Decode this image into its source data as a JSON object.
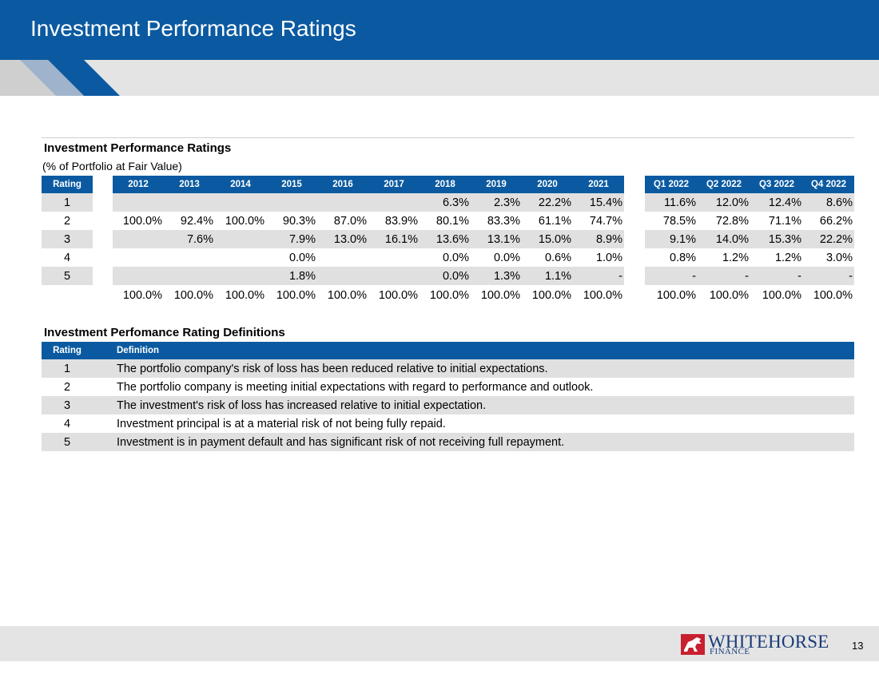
{
  "header": {
    "title": "Investment Performance Ratings"
  },
  "ratings_table": {
    "title": "Investment Performance Ratings",
    "subtitle": "(% of Portfolio at Fair Value)",
    "rating_header": "Rating",
    "year_headers": [
      "2012",
      "2013",
      "2014",
      "2015",
      "2016",
      "2017",
      "2018",
      "2019",
      "2020",
      "2021"
    ],
    "quarter_headers": [
      "Q1 2022",
      "Q2 2022",
      "Q3 2022",
      "Q4 2022"
    ],
    "rows": [
      {
        "rating": "1",
        "years": [
          "",
          "",
          "",
          "",
          "",
          "",
          "6.3%",
          "2.3%",
          "22.2%",
          "15.4%"
        ],
        "quarters": [
          "11.6%",
          "12.0%",
          "12.4%",
          "8.6%"
        ]
      },
      {
        "rating": "2",
        "years": [
          "100.0%",
          "92.4%",
          "100.0%",
          "90.3%",
          "87.0%",
          "83.9%",
          "80.1%",
          "83.3%",
          "61.1%",
          "74.7%"
        ],
        "quarters": [
          "78.5%",
          "72.8%",
          "71.1%",
          "66.2%"
        ]
      },
      {
        "rating": "3",
        "years": [
          "",
          "7.6%",
          "",
          "7.9%",
          "13.0%",
          "16.1%",
          "13.6%",
          "13.1%",
          "15.0%",
          "8.9%"
        ],
        "quarters": [
          "9.1%",
          "14.0%",
          "15.3%",
          "22.2%"
        ]
      },
      {
        "rating": "4",
        "years": [
          "",
          "",
          "",
          "0.0%",
          "",
          "",
          "0.0%",
          "0.0%",
          "0.6%",
          "1.0%"
        ],
        "quarters": [
          "0.8%",
          "1.2%",
          "1.2%",
          "3.0%"
        ]
      },
      {
        "rating": "5",
        "years": [
          "",
          "",
          "",
          "1.8%",
          "",
          "",
          "0.0%",
          "1.3%",
          "1.1%",
          "-"
        ],
        "quarters": [
          "-",
          "-",
          "-",
          "-"
        ]
      }
    ],
    "totals": {
      "years": [
        "100.0%",
        "100.0%",
        "100.0%",
        "100.0%",
        "100.0%",
        "100.0%",
        "100.0%",
        "100.0%",
        "100.0%",
        "100.0%"
      ],
      "quarters": [
        "100.0%",
        "100.0%",
        "100.0%",
        "100.0%"
      ]
    }
  },
  "definitions_table": {
    "title": "Investment Perfomance Rating Definitions",
    "rating_header": "Rating",
    "definition_header": "Definition",
    "rows": [
      {
        "rating": "1",
        "definition": "The portfolio company's risk of loss has been reduced relative to initial expectations."
      },
      {
        "rating": "2",
        "definition": "The portfolio company is meeting initial expectations with regard to performance and outlook."
      },
      {
        "rating": "3",
        "definition": "The investment's risk of loss has increased relative to initial expectation."
      },
      {
        "rating": "4",
        "definition": "Investment principal is at a material risk of not being fully repaid."
      },
      {
        "rating": "5",
        "definition": "Investment is in payment default and has significant risk of not receiving full repayment."
      }
    ]
  },
  "footer": {
    "logo_text": "WHITEHORSE",
    "logo_subtext": "FINANCE",
    "page_number": "13"
  },
  "colors": {
    "brand_blue": "#0b5aa1",
    "shade_gray": "#e0e0e0",
    "logo_red": "#c8202f",
    "logo_navy": "#1a3d7a"
  }
}
